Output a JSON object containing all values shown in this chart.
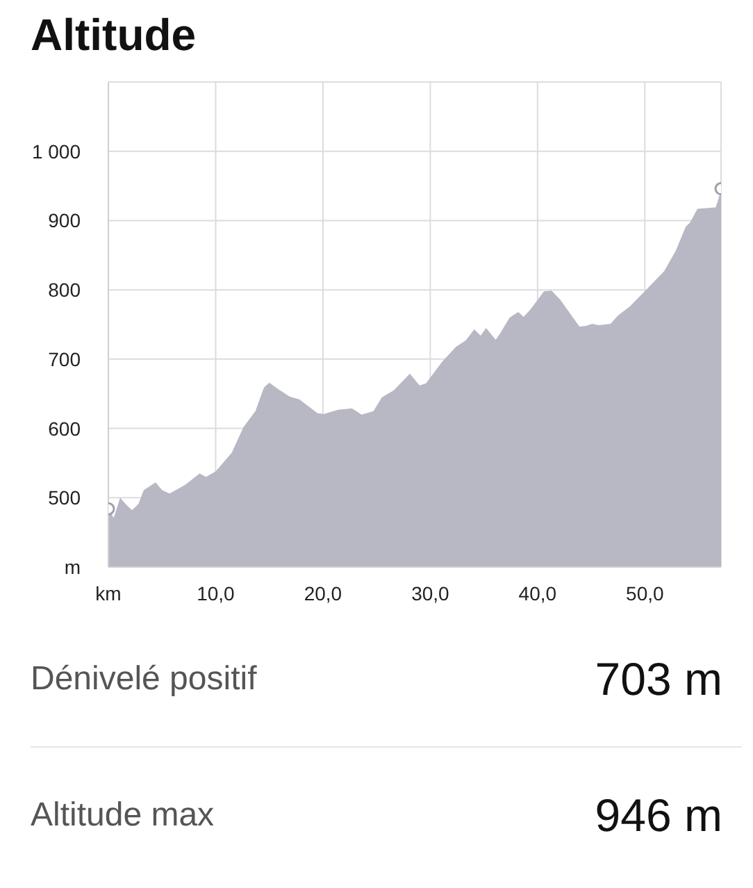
{
  "chart_data": {
    "type": "area",
    "title": "Altitude",
    "grid": true,
    "xlim": [
      0,
      57.1
    ],
    "xticks": [
      {
        "value": 0,
        "label": "km"
      },
      {
        "value": 10,
        "label": "10,0"
      },
      {
        "value": 20,
        "label": "20,0"
      },
      {
        "value": 30,
        "label": "30,0"
      },
      {
        "value": 40,
        "label": "40,0"
      },
      {
        "value": 50,
        "label": "50,0"
      }
    ],
    "ylim": [
      400,
      1100
    ],
    "yticks": [
      {
        "value": 400,
        "label": "m"
      },
      500,
      600,
      700,
      800,
      900,
      {
        "value": 1000,
        "label": "1 000"
      },
      {
        "value": 1100,
        "label": null
      }
    ],
    "series": [
      {
        "color": "#b8b8c4",
        "x": [
          0,
          0.5,
          1.1,
          1.6,
          2.2,
          2.8,
          3.3,
          4.4,
          5.0,
          5.7,
          6.3,
          7.2,
          8.5,
          9.1,
          10,
          11.5,
          12.6,
          13.7,
          14.5,
          15.0,
          15.8,
          16.9,
          17.8,
          19.5,
          20.1,
          21.4,
          22.7,
          23.6,
          24.7,
          25.5,
          26.6,
          28.1,
          29.0,
          29.6,
          31.1,
          32.4,
          33.3,
          34.1,
          34.7,
          35.2,
          36.1,
          36.5,
          37.4,
          38.2,
          38.7,
          39.3,
          40.6,
          41.3,
          42.1,
          43.9,
          44.5,
          45.1,
          45.7,
          46.8,
          47.5,
          48.6,
          50.3,
          51.8,
          52.9,
          53.8,
          54.2,
          54.9,
          56.6,
          56.8,
          57.1
        ],
        "values": [
          484,
          471,
          500,
          491,
          482,
          491,
          511,
          522,
          511,
          506,
          511,
          519,
          535,
          530,
          538,
          565,
          602,
          625,
          659,
          666,
          657,
          646,
          642,
          622,
          621,
          627,
          629,
          620,
          625,
          645,
          655,
          679,
          662,
          665,
          696,
          718,
          727,
          743,
          734,
          745,
          728,
          737,
          760,
          768,
          761,
          771,
          798,
          799,
          786,
          747,
          748,
          751,
          749,
          751,
          763,
          776,
          803,
          827,
          857,
          891,
          897,
          917,
          919,
          928,
          946
        ]
      },
      {
        "type": "scatter",
        "color": "#a0a0a8",
        "marker": "circle",
        "x": [
          0,
          57.1
        ],
        "values": [
          484,
          946
        ]
      }
    ],
    "annotations": [
      "Dénivelé positif",
      "703 m",
      "Altitude max",
      "946 m"
    ]
  }
}
